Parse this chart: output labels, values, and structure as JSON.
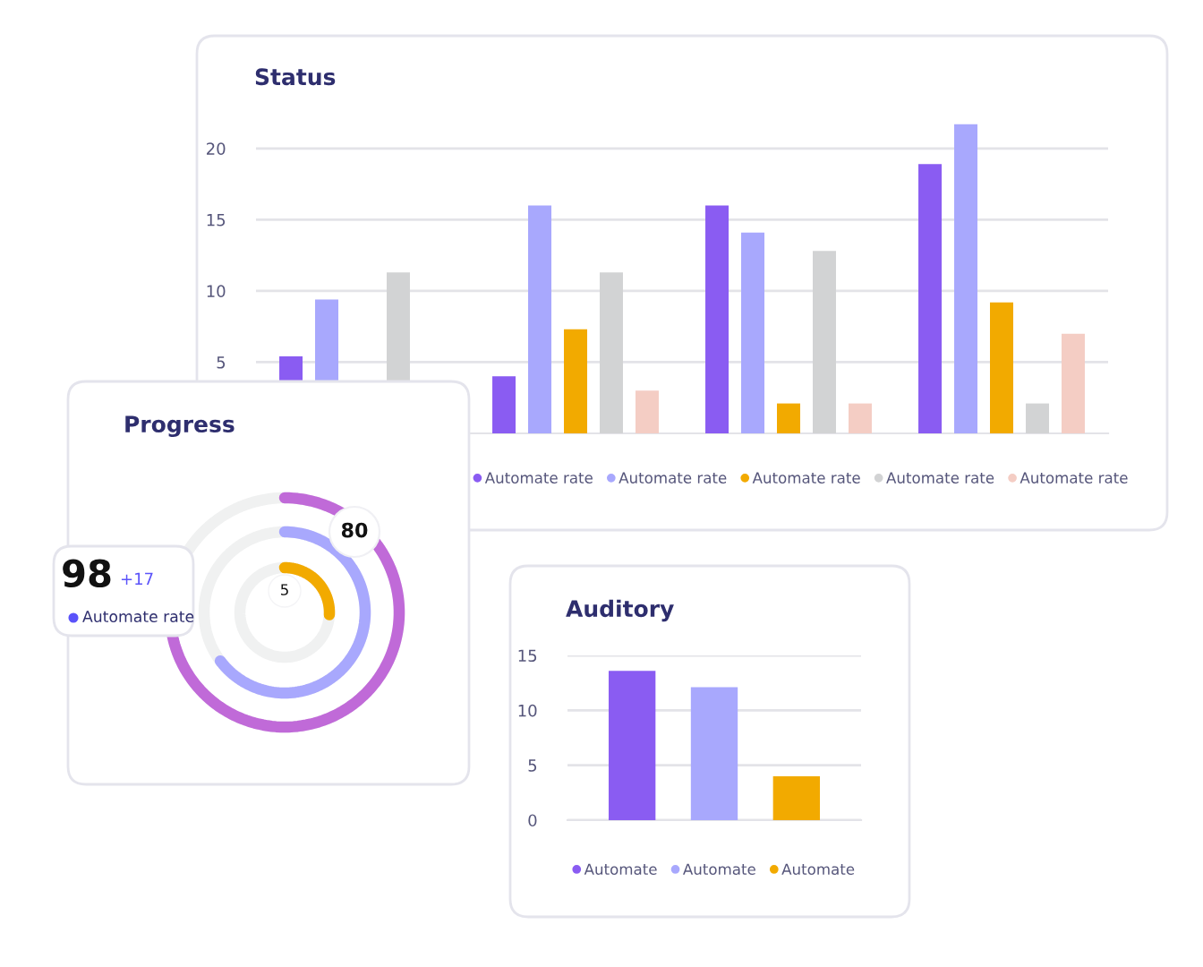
{
  "chart_data": [
    {
      "type": "bar",
      "title": "Status",
      "categories": [
        null,
        null,
        null,
        null
      ],
      "ylim": [
        0,
        22
      ],
      "yticks": [
        5,
        10,
        15,
        20
      ],
      "grid": "y",
      "legend": "bottom",
      "series": [
        {
          "name": "Automate rate",
          "color": "#8a5cf2",
          "values": [
            5.4,
            4.0,
            16.0,
            18.9
          ]
        },
        {
          "name": "Automate rate",
          "color": "#a8a8fd",
          "values": [
            9.4,
            16.0,
            14.1,
            21.7
          ]
        },
        {
          "name": "Automate rate",
          "color": "#f2aa00",
          "values": [
            null,
            7.3,
            2.1,
            9.2
          ]
        },
        {
          "name": "Automate rate",
          "color": "#d2d3d4",
          "values": [
            11.3,
            11.3,
            12.8,
            2.1
          ]
        },
        {
          "name": "Automate rate",
          "color": "#f4cdc4",
          "values": [
            null,
            3.0,
            2.1,
            7.0
          ]
        }
      ]
    },
    {
      "type": "bar",
      "title": "Auditory",
      "categories": [
        null
      ],
      "ylim": [
        0,
        15
      ],
      "yticks": [
        0,
        5,
        10,
        15
      ],
      "grid": "y",
      "legend": "bottom",
      "series": [
        {
          "name": "Automate",
          "color": "#8a5cf2",
          "values": [
            13.6
          ]
        },
        {
          "name": "Automate",
          "color": "#a8a8fd",
          "values": [
            12.1
          ]
        },
        {
          "name": "Automate",
          "color": "#f2aa00",
          "values": [
            4.0
          ]
        }
      ]
    },
    {
      "type": "other",
      "title": "Progress",
      "annotations": [
        "80",
        "5",
        "98",
        "+17",
        "Automate rate"
      ]
    }
  ]
}
